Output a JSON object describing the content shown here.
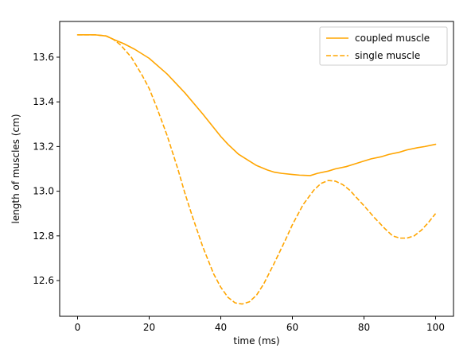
{
  "chart_data": {
    "type": "line",
    "title": "",
    "xlabel": "time (ms)",
    "ylabel": "length of muscles (cm)",
    "xlim": [
      -5,
      105
    ],
    "ylim": [
      12.44,
      13.76
    ],
    "xticks": [
      0,
      20,
      40,
      60,
      80,
      100
    ],
    "xtick_labels": [
      "0",
      "20",
      "40",
      "60",
      "80",
      "100"
    ],
    "yticks": [
      12.6,
      12.8,
      13.0,
      13.2,
      13.4,
      13.6
    ],
    "ytick_labels": [
      "12.6",
      "12.8",
      "13.0",
      "13.2",
      "13.4",
      "13.6"
    ],
    "grid": false,
    "legend_position": "top-right",
    "series": [
      {
        "name": "coupled muscle",
        "style": "solid",
        "color": "#ffa500",
        "x": [
          0,
          5,
          8,
          10,
          13,
          16,
          20,
          25,
          30,
          35,
          40,
          42,
          45,
          48,
          50,
          53,
          55,
          57,
          60,
          62,
          65,
          67,
          70,
          72,
          75,
          77,
          80,
          82,
          85,
          87,
          90,
          92,
          95,
          97,
          100
        ],
        "y": [
          13.7,
          13.7,
          13.695,
          13.68,
          13.66,
          13.635,
          13.595,
          13.525,
          13.44,
          13.345,
          13.245,
          13.21,
          13.165,
          13.135,
          13.115,
          13.095,
          13.085,
          13.08,
          13.075,
          13.072,
          13.07,
          13.08,
          13.09,
          13.1,
          13.11,
          13.12,
          13.135,
          13.145,
          13.155,
          13.165,
          13.175,
          13.185,
          13.195,
          13.2,
          13.21
        ]
      },
      {
        "name": "single muscle",
        "style": "dashed",
        "color": "#ffa500",
        "x": [
          0,
          5,
          8,
          10,
          12,
          15,
          18,
          20,
          22,
          25,
          28,
          30,
          32,
          35,
          38,
          40,
          42,
          44,
          46,
          48,
          50,
          52,
          55,
          58,
          60,
          63,
          66,
          68,
          70,
          72,
          74,
          76,
          78,
          80,
          83,
          86,
          88,
          90,
          92,
          94,
          96,
          98,
          100
        ],
        "y": [
          13.7,
          13.7,
          13.695,
          13.68,
          13.655,
          13.6,
          13.52,
          13.46,
          13.38,
          13.25,
          13.1,
          12.99,
          12.89,
          12.75,
          12.63,
          12.57,
          12.525,
          12.5,
          12.495,
          12.505,
          12.535,
          12.585,
          12.68,
          12.78,
          12.85,
          12.94,
          13.005,
          13.035,
          13.048,
          13.045,
          13.03,
          13.005,
          12.97,
          12.935,
          12.88,
          12.83,
          12.8,
          12.79,
          12.79,
          12.8,
          12.825,
          12.86,
          12.9
        ]
      }
    ]
  }
}
